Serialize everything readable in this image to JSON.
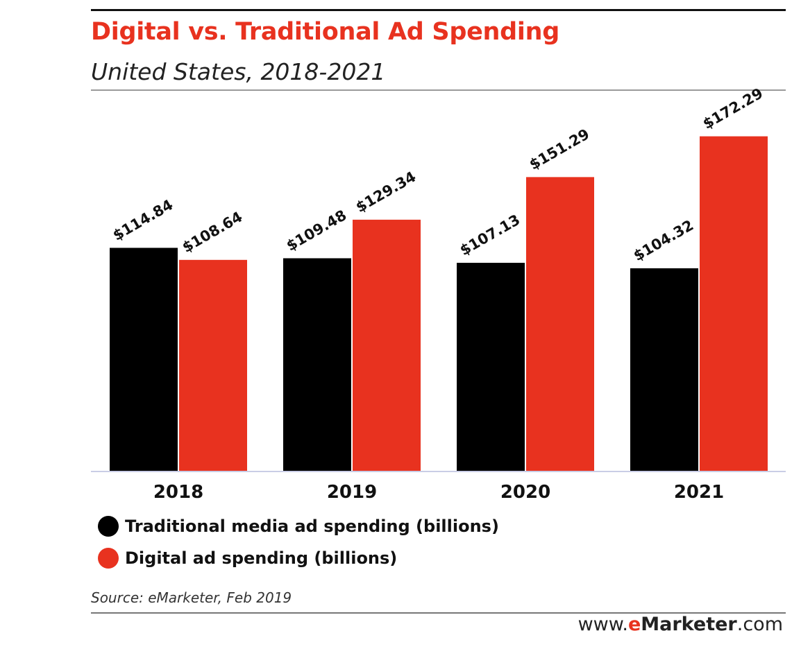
{
  "chart_data": {
    "type": "bar",
    "title": "Digital vs. Traditional Ad Spending",
    "subtitle": "United States, 2018-2021",
    "categories": [
      "2018",
      "2019",
      "2020",
      "2021"
    ],
    "series": [
      {
        "name": "Traditional media ad spending (billions)",
        "color": "#000000",
        "values": [
          114.84,
          109.48,
          107.13,
          104.32
        ],
        "labels": [
          "$114.84",
          "$109.48",
          "$107.13",
          "$104.32"
        ]
      },
      {
        "name": "Digital ad spending (billions)",
        "color": "#e8321f",
        "values": [
          108.64,
          129.34,
          151.29,
          172.29
        ],
        "labels": [
          "$108.64",
          "$129.34",
          "$151.29",
          "$172.29"
        ]
      }
    ],
    "ylim": [
      0,
      200
    ],
    "grid": false,
    "legend_position": "bottom-left",
    "xlabel": "",
    "ylabel": ""
  },
  "source": "Source: eMarketer, Feb 2019",
  "brand": {
    "prefix": "www.",
    "e": "e",
    "name": "Marketer",
    "suffix": ".com"
  },
  "colors": {
    "title": "#e8321f",
    "traditional": "#000000",
    "digital": "#e8321f"
  }
}
